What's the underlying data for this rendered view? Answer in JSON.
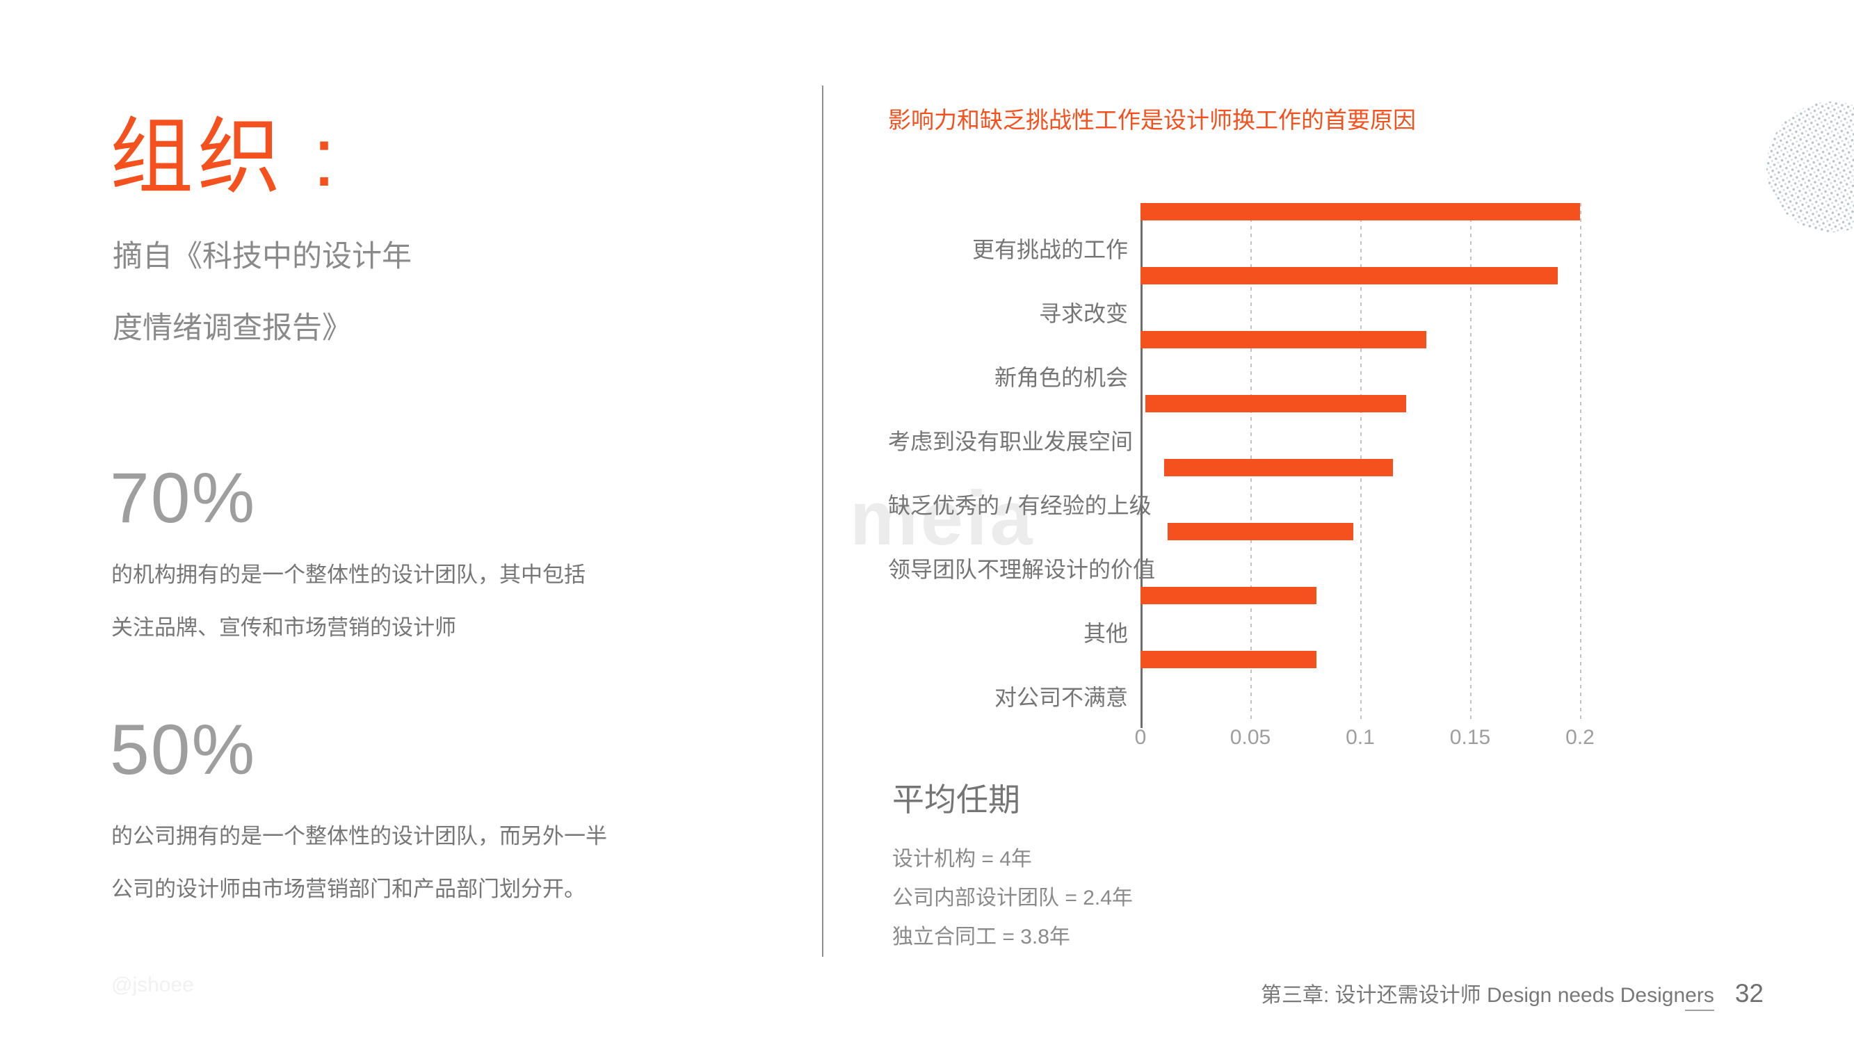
{
  "colors": {
    "accent": "#F4511E",
    "bar": "#F4511E",
    "divider": "#8e8e8e",
    "body_text": "#767676",
    "muted_text": "#9e9e9e",
    "watermark": "#ececec"
  },
  "left": {
    "title": "组织 :",
    "subtitle_lines": [
      "摘自《科技中的设计年",
      "度情绪调查报告》"
    ],
    "stats": [
      {
        "value": "70%",
        "lines": [
          "的机构拥有的是一个整体性的设计团队，其中包括",
          "关注品牌、宣传和市场营销的设计师"
        ]
      },
      {
        "value": "50%",
        "lines": [
          "的公司拥有的是一个整体性的设计团队，而另外一半",
          "公司的设计师由市场营销部门和产品部门划分开。"
        ]
      }
    ]
  },
  "chart_data": {
    "type": "bar",
    "orientation": "horizontal",
    "title": "影响力和缺乏挑战性工作是设计师换工作的首要原因",
    "categories": [
      "更有挑战的工作",
      "寻求改变",
      "新角色的机会",
      "考虑到没有职业发展空间",
      "缺乏优秀的 / 有经验的上级",
      "领导团队不理解设计的价值",
      "其他",
      "对公司不满意"
    ],
    "values": [
      0.2,
      0.19,
      0.13,
      0.12,
      0.11,
      0.09,
      0.08,
      0.08
    ],
    "xlabel": "",
    "ylabel": "",
    "xlim": [
      0,
      0.2
    ],
    "tick_values": [
      0,
      0.05,
      0.1,
      0.15,
      0.2
    ],
    "xticks": [
      "0",
      "0.05",
      "0.1",
      "0.15",
      "0.2"
    ],
    "grid": "dashed-vertical",
    "legend": "none",
    "bar_color": "#F4511E"
  },
  "tenure": {
    "heading": "平均任期",
    "lines": [
      "设计机构 = 4年",
      "公司内部设计团队 = 2.4年",
      "独立合同工 = 3.8年"
    ]
  },
  "footer": {
    "chapter_text": "第三章: 设计还需设计师 Design needs Design",
    "chapter_underlined": "ers",
    "page_number": "32"
  },
  "watermarks": {
    "center": "meia",
    "handle": "@jshoee"
  }
}
